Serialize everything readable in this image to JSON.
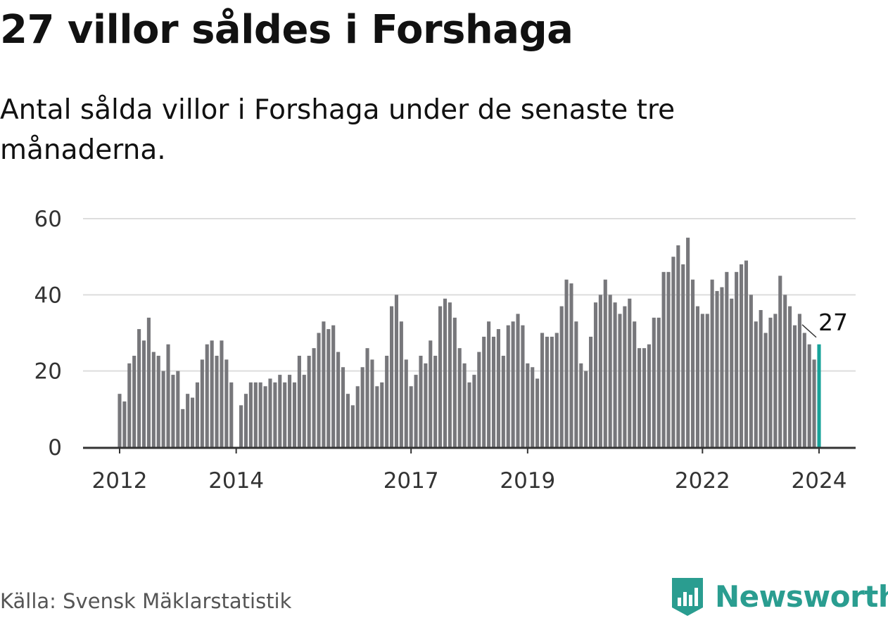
{
  "title": "27 villor såldes i Forshaga",
  "subtitle": "Antal sålda villor i Forshaga under de senaste tre månaderna.",
  "source": "Källa: Svensk Mäklarstatistik",
  "brand": "Newsworthy",
  "colors": {
    "bar": "#77777b",
    "highlight": "#17a39a",
    "brand": "#2a9d90",
    "grid": "#dddddd",
    "axis": "#333333"
  },
  "chart_data": {
    "type": "bar",
    "title": "27 villor såldes i Forshaga",
    "xlabel": "",
    "ylabel": "",
    "ylim": [
      0,
      60
    ],
    "yticks": [
      0,
      20,
      40,
      60
    ],
    "grid": true,
    "first_month": "2012-01",
    "last_month": "2024-01",
    "xticks": [
      {
        "label": "2012",
        "month_index": 0
      },
      {
        "label": "2014",
        "month_index": 24
      },
      {
        "label": "2017",
        "month_index": 60
      },
      {
        "label": "2019",
        "month_index": 84
      },
      {
        "label": "2022",
        "month_index": 120
      },
      {
        "label": "2024",
        "month_index": 144
      }
    ],
    "annotation": {
      "label": "27",
      "month_index": 144,
      "value": 27
    },
    "values": [
      14,
      12,
      22,
      24,
      31,
      28,
      34,
      25,
      24,
      20,
      27,
      19,
      20,
      10,
      14,
      13,
      17,
      23,
      27,
      28,
      24,
      28,
      23,
      17,
      null,
      11,
      14,
      17,
      17,
      17,
      16,
      18,
      17,
      19,
      17,
      19,
      17,
      24,
      19,
      24,
      26,
      30,
      33,
      31,
      32,
      25,
      21,
      14,
      11,
      16,
      21,
      26,
      23,
      16,
      17,
      24,
      37,
      40,
      33,
      23,
      16,
      19,
      24,
      22,
      28,
      24,
      37,
      39,
      38,
      34,
      26,
      22,
      17,
      19,
      25,
      29,
      33,
      29,
      31,
      24,
      32,
      33,
      35,
      32,
      22,
      21,
      18,
      30,
      29,
      29,
      30,
      37,
      44,
      43,
      33,
      22,
      20,
      29,
      38,
      40,
      44,
      40,
      38,
      35,
      37,
      39,
      33,
      26,
      26,
      27,
      34,
      34,
      46,
      46,
      50,
      53,
      48,
      55,
      44,
      37,
      35,
      35,
      44,
      41,
      42,
      46,
      39,
      46,
      48,
      49,
      40,
      33,
      36,
      30,
      34,
      35,
      45,
      40,
      37,
      32,
      35,
      30,
      27,
      23,
      27
    ]
  }
}
